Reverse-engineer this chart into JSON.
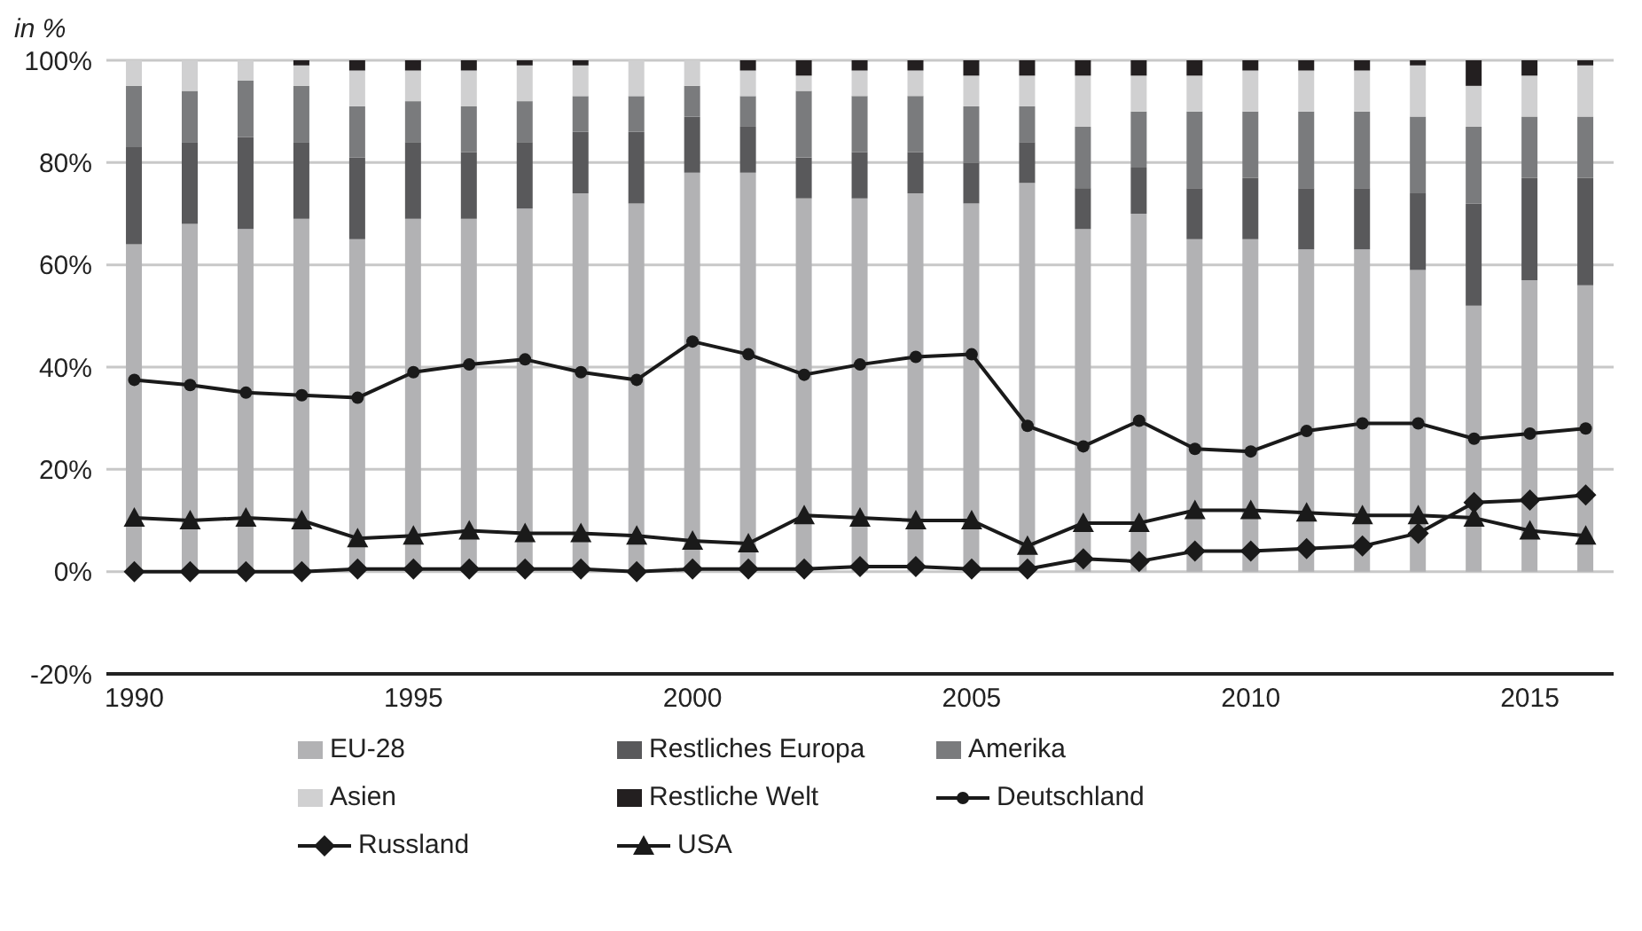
{
  "chart_data": {
    "type": "bar",
    "stacked": true,
    "ylabel": "in %",
    "categories": [
      "1990",
      null,
      null,
      null,
      null,
      "1995",
      null,
      null,
      null,
      null,
      "2000",
      null,
      null,
      null,
      null,
      "2005",
      null,
      null,
      null,
      null,
      "2010",
      null,
      null,
      null,
      null,
      "2015",
      null
    ],
    "series": [
      {
        "name": "EU-28",
        "color": "#b2b2b4",
        "values": [
          64,
          68,
          67,
          69,
          65,
          69,
          69,
          71,
          74,
          72,
          78,
          78,
          73,
          73,
          74,
          72,
          76,
          67,
          70,
          65,
          65,
          63,
          63,
          59,
          52,
          57,
          56
        ]
      },
      {
        "name": "Restliches Europa",
        "color": "#59595b",
        "values": [
          19,
          16,
          18,
          15,
          16,
          15,
          13,
          13,
          12,
          14,
          11,
          9,
          8,
          9,
          8,
          8,
          8,
          8,
          9,
          10,
          12,
          12,
          12,
          15,
          20,
          20,
          21
        ]
      },
      {
        "name": "Amerika",
        "color": "#7a7b7d",
        "values": [
          12,
          10,
          11,
          11,
          10,
          8,
          9,
          8,
          7,
          7,
          6,
          6,
          13,
          11,
          11,
          11,
          7,
          12,
          11,
          15,
          13,
          15,
          15,
          15,
          15,
          12,
          12
        ]
      },
      {
        "name": "Asien",
        "color": "#d0d0d1",
        "values": [
          5,
          6,
          4,
          4,
          7,
          6,
          7,
          7,
          6,
          7,
          5,
          5,
          3,
          5,
          5,
          6,
          6,
          10,
          7,
          7,
          8,
          8,
          8,
          10,
          8,
          8,
          10
        ]
      },
      {
        "name": "Restliche Welt",
        "color": "#231f20",
        "values": [
          0,
          0,
          0,
          1,
          2,
          2,
          2,
          1,
          1,
          0,
          0,
          2,
          3,
          2,
          2,
          3,
          3,
          3,
          3,
          3,
          2,
          2,
          2,
          1,
          5,
          3,
          1
        ]
      },
      {
        "name": "Deutschland",
        "type": "line",
        "marker": "circle",
        "color": "#1a1a1a",
        "values": [
          37.5,
          36.5,
          35,
          34.5,
          34,
          39,
          40.5,
          41.5,
          39,
          37.5,
          45,
          42.5,
          38.5,
          40.5,
          42,
          42.5,
          28.5,
          24.5,
          29.5,
          24,
          23.5,
          27.5,
          29,
          29,
          26,
          27,
          28
        ]
      },
      {
        "name": "Russland",
        "type": "line",
        "marker": "diamond",
        "color": "#1a1a1a",
        "values": [
          0,
          0,
          0,
          0,
          0.5,
          0.5,
          0.5,
          0.5,
          0.5,
          0,
          0.5,
          0.5,
          0.5,
          1,
          1,
          0.5,
          0.5,
          2.5,
          2,
          4,
          4,
          4.5,
          5,
          7.5,
          13.5,
          14,
          15
        ]
      },
      {
        "name": "USA",
        "type": "line",
        "marker": "triangle",
        "color": "#1a1a1a",
        "values": [
          10.5,
          10,
          10.5,
          10,
          6.5,
          7,
          8,
          7.5,
          7.5,
          7,
          6,
          5.5,
          11,
          10.5,
          10,
          10,
          5,
          9.5,
          9.5,
          12,
          12,
          11.5,
          11,
          11,
          10.5,
          8,
          7
        ]
      }
    ],
    "ylim": [
      -20,
      100
    ],
    "yticks": [
      {
        "value": -20,
        "label": "-20%"
      },
      {
        "value": 0,
        "label": "0%"
      },
      {
        "value": 20,
        "label": "20%"
      },
      {
        "value": 40,
        "label": "40%"
      },
      {
        "value": 60,
        "label": "60%"
      },
      {
        "value": 80,
        "label": "80%"
      },
      {
        "value": 100,
        "label": "100%"
      }
    ],
    "grid": "y",
    "legend": "bottom"
  }
}
